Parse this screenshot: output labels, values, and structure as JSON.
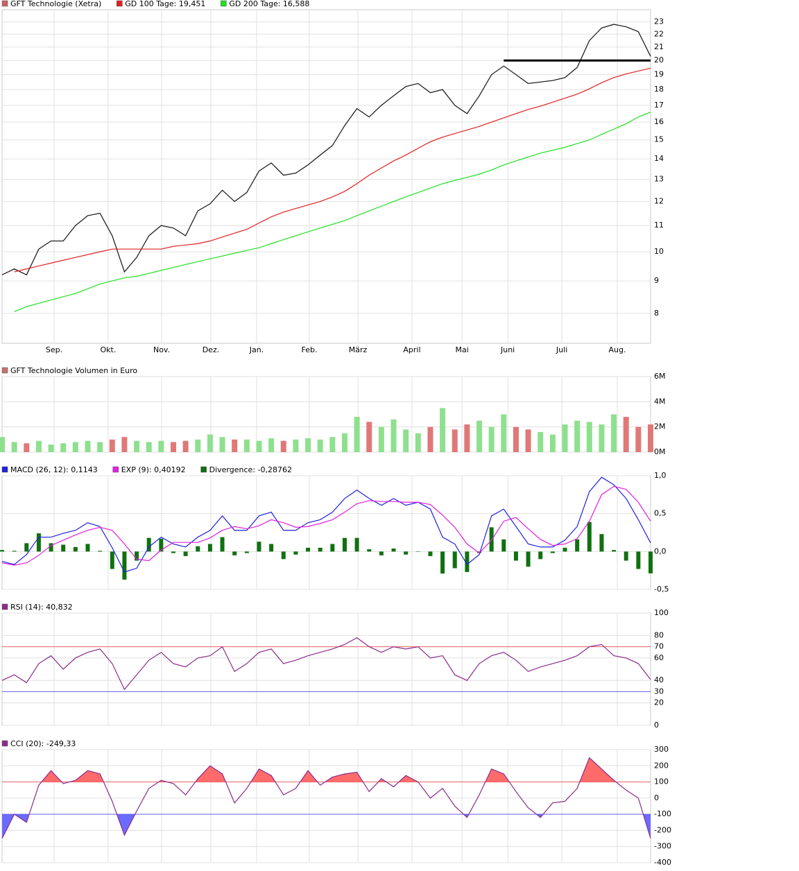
{
  "chart_data": [
    {
      "type": "line",
      "log_scale": true,
      "x": [
        0,
        1,
        2,
        3,
        4,
        5,
        6,
        7,
        8,
        9,
        10,
        11,
        12,
        13,
        14,
        15,
        16,
        17,
        18,
        19,
        20,
        21,
        22,
        23,
        24,
        25,
        26,
        27,
        28,
        29,
        30,
        31,
        32,
        33,
        34,
        35,
        36,
        37,
        38,
        39,
        40,
        41,
        42,
        43,
        44,
        45,
        46,
        47,
        48,
        49,
        50,
        51,
        52,
        53
      ],
      "xlim": [
        0,
        53
      ],
      "xticks": [
        {
          "value": 4.25,
          "label": "Sep."
        },
        {
          "value": 8.67,
          "label": "Okt."
        },
        {
          "value": 13.04,
          "label": "Nov."
        },
        {
          "value": 17.06,
          "label": "Dez."
        },
        {
          "value": 20.8,
          "label": "Jan."
        },
        {
          "value": 25.11,
          "label": "Feb."
        },
        {
          "value": 29.08,
          "label": "März"
        },
        {
          "value": 33.5,
          "label": "April"
        },
        {
          "value": 37.59,
          "label": "Mai"
        },
        {
          "value": 41.33,
          "label": "Juni"
        },
        {
          "value": 45.75,
          "label": "Juli"
        },
        {
          "value": 50.28,
          "label": "Aug."
        }
      ],
      "ylim": [
        7.18,
        24.04
      ],
      "yticks": [
        8,
        9,
        10,
        11,
        12,
        13,
        14,
        15,
        16,
        17,
        18,
        19,
        20,
        21,
        22,
        23
      ],
      "grid": true,
      "series": [
        {
          "name": "GFT Technologie (Xetra)",
          "color": "#222222",
          "legend_color": "#d06060",
          "values": [
            9.2,
            9.4,
            9.2,
            10.1,
            10.4,
            10.4,
            11.0,
            11.4,
            11.5,
            10.6,
            9.3,
            9.8,
            10.6,
            11.0,
            10.9,
            10.6,
            11.6,
            11.9,
            12.5,
            12.0,
            12.4,
            13.4,
            13.8,
            13.2,
            13.3,
            13.7,
            14.2,
            14.7,
            15.8,
            16.8,
            16.3,
            17.0,
            17.6,
            18.2,
            18.4,
            17.8,
            18.0,
            17.0,
            16.5,
            17.6,
            19.0,
            19.6,
            19.0,
            18.4,
            18.5,
            18.6,
            18.8,
            19.5,
            21.5,
            22.5,
            22.8,
            22.6,
            22.2,
            20.3
          ]
        },
        {
          "name": "GD 100 Tage: 19,451",
          "color": "#e02020",
          "values": [
            null,
            9.3,
            9.4,
            9.5,
            9.6,
            9.7,
            9.8,
            9.9,
            10.0,
            10.1,
            10.1,
            10.1,
            10.1,
            10.1,
            10.2,
            10.25,
            10.3,
            10.4,
            10.55,
            10.7,
            10.85,
            11.1,
            11.35,
            11.55,
            11.7,
            11.85,
            12.0,
            12.2,
            12.45,
            12.8,
            13.2,
            13.55,
            13.9,
            14.2,
            14.55,
            14.9,
            15.15,
            15.35,
            15.55,
            15.75,
            16.0,
            16.25,
            16.5,
            16.75,
            16.95,
            17.2,
            17.45,
            17.7,
            18.05,
            18.45,
            18.8,
            19.05,
            19.25,
            19.451
          ]
        },
        {
          "name": "GD 200 Tage: 16,588",
          "color": "#20e020",
          "values": [
            null,
            8.05,
            8.2,
            8.3,
            8.4,
            8.5,
            8.6,
            8.75,
            8.9,
            9.0,
            9.1,
            9.15,
            9.25,
            9.35,
            9.45,
            9.55,
            9.65,
            9.75,
            9.85,
            9.95,
            10.05,
            10.15,
            10.3,
            10.45,
            10.6,
            10.75,
            10.9,
            11.05,
            11.2,
            11.4,
            11.6,
            11.8,
            12.0,
            12.2,
            12.4,
            12.6,
            12.8,
            12.95,
            13.1,
            13.25,
            13.45,
            13.7,
            13.9,
            14.1,
            14.3,
            14.45,
            14.6,
            14.8,
            15.0,
            15.3,
            15.6,
            15.9,
            16.3,
            16.588
          ]
        }
      ],
      "level_line": {
        "y": 20,
        "x": [
          41,
          53
        ],
        "color": "#000000"
      }
    },
    {
      "type": "bar",
      "name": "GFT Technologie Volumen in Euro",
      "color": "#c87070",
      "up_color": "#8ee08e",
      "down_color": "#e07878",
      "ylim": [
        0,
        6000000
      ],
      "yticks": [
        {
          "value": 0,
          "label": "0M"
        },
        {
          "value": 2000000,
          "label": "2M"
        },
        {
          "value": 4000000,
          "label": "4M"
        },
        {
          "value": 6000000,
          "label": "6M"
        }
      ],
      "values": [
        1200000,
        800000,
        700000,
        900000,
        600000,
        700000,
        800000,
        900000,
        800000,
        1000000,
        1200000,
        900000,
        800000,
        900000,
        800000,
        900000,
        1000000,
        1400000,
        1200000,
        1000000,
        1000000,
        900000,
        1100000,
        900000,
        1000000,
        1100000,
        1000000,
        1200000,
        1500000,
        2800000,
        2400000,
        2000000,
        2600000,
        1800000,
        1500000,
        2000000,
        3500000,
        1800000,
        2200000,
        2500000,
        2000000,
        3000000,
        2000000,
        1800000,
        1600000,
        1400000,
        2200000,
        2500000,
        2400000,
        2200000,
        3000000,
        2800000,
        2000000,
        2200000
      ]
    },
    {
      "type": "macd",
      "ylim": [
        -0.5,
        1.0
      ],
      "yticks": [
        {
          "value": -0.5,
          "label": "-0,5"
        },
        {
          "value": 0,
          "label": "0,0"
        },
        {
          "value": 0.5,
          "label": "0,5"
        },
        {
          "value": 1.0,
          "label": "1,0"
        }
      ],
      "series": [
        {
          "name": "MACD (26, 12): 0,1143",
          "color": "#2020e0",
          "style": "line",
          "values": [
            -0.13,
            -0.17,
            -0.04,
            0.19,
            0.19,
            0.24,
            0.28,
            0.38,
            0.33,
            0.05,
            -0.27,
            -0.22,
            0.06,
            0.19,
            0.1,
            0.06,
            0.19,
            0.28,
            0.47,
            0.28,
            0.28,
            0.47,
            0.52,
            0.28,
            0.28,
            0.38,
            0.42,
            0.52,
            0.7,
            0.81,
            0.7,
            0.61,
            0.7,
            0.61,
            0.65,
            0.56,
            0.19,
            0.1,
            -0.17,
            -0.04,
            0.47,
            0.56,
            0.33,
            0.1,
            0.06,
            0.06,
            0.15,
            0.33,
            0.79,
            0.98,
            0.88,
            0.7,
            0.42,
            0.1143
          ]
        },
        {
          "name": "EXP (9): 0,40192",
          "color": "#e020e0",
          "style": "line",
          "values": [
            -0.15,
            -0.18,
            -0.15,
            -0.05,
            0.08,
            0.15,
            0.22,
            0.28,
            0.32,
            0.28,
            0.1,
            -0.1,
            -0.12,
            0.02,
            0.12,
            0.12,
            0.12,
            0.18,
            0.28,
            0.33,
            0.3,
            0.34,
            0.42,
            0.38,
            0.32,
            0.33,
            0.37,
            0.42,
            0.52,
            0.63,
            0.67,
            0.66,
            0.66,
            0.65,
            0.65,
            0.62,
            0.48,
            0.32,
            0.1,
            -0.02,
            0.15,
            0.4,
            0.45,
            0.3,
            0.16,
            0.08,
            0.1,
            0.17,
            0.4,
            0.75,
            0.86,
            0.82,
            0.65,
            0.40192
          ]
        },
        {
          "name": "Divergence: -0,28762",
          "color": "#107010",
          "style": "bar",
          "values": [
            0.02,
            0.01,
            0.11,
            0.24,
            0.11,
            0.09,
            0.06,
            0.1,
            0.01,
            -0.23,
            -0.37,
            -0.12,
            0.18,
            0.17,
            -0.02,
            -0.06,
            0.07,
            0.1,
            0.19,
            -0.05,
            -0.02,
            0.13,
            0.1,
            -0.1,
            -0.04,
            0.05,
            0.05,
            0.1,
            0.18,
            0.18,
            0.03,
            -0.05,
            0.04,
            -0.04,
            0.0,
            -0.06,
            -0.29,
            -0.22,
            -0.27,
            -0.02,
            0.32,
            0.16,
            -0.12,
            -0.2,
            -0.1,
            -0.02,
            0.05,
            0.16,
            0.39,
            0.23,
            0.02,
            -0.12,
            -0.23,
            -0.28762
          ]
        }
      ]
    },
    {
      "type": "line",
      "ylim": [
        0,
        100
      ],
      "yticks": [
        0,
        20,
        40,
        60,
        80,
        100
      ],
      "reference_lines": [
        {
          "value": 70,
          "color": "#e06060"
        },
        {
          "value": 30,
          "color": "#6060e0"
        }
      ],
      "series": [
        {
          "name": "RSI (14): 40,832",
          "color": "#8b2b8b",
          "values": [
            40,
            45,
            38,
            55,
            62,
            50,
            60,
            65,
            68,
            55,
            32,
            45,
            58,
            65,
            55,
            52,
            60,
            62,
            70,
            48,
            55,
            65,
            68,
            55,
            58,
            62,
            65,
            68,
            72,
            78,
            70,
            65,
            70,
            68,
            70,
            60,
            62,
            45,
            40,
            55,
            62,
            65,
            58,
            48,
            52,
            55,
            58,
            62,
            70,
            72,
            62,
            60,
            55,
            40.832
          ]
        }
      ]
    },
    {
      "type": "line",
      "ylim": [
        -400,
        300
      ],
      "yticks": [
        -400,
        -300,
        -200,
        0,
        200,
        300
      ],
      "reference_lines": [
        {
          "value": 100,
          "color": "#e06060",
          "fill": "above",
          "fill_color": "#ff6b6b"
        },
        {
          "value": -100,
          "color": "#6060e0",
          "fill": "below",
          "fill_color": "#6b6bff"
        }
      ],
      "series": [
        {
          "name": "CCI (20): -249,33",
          "color": "#8b2b8b",
          "values": [
            -250,
            -100,
            -150,
            80,
            170,
            90,
            110,
            170,
            150,
            -20,
            -230,
            -80,
            60,
            110,
            90,
            20,
            120,
            200,
            150,
            -30,
            60,
            180,
            140,
            20,
            60,
            170,
            80,
            130,
            150,
            160,
            40,
            120,
            70,
            140,
            100,
            0,
            60,
            -50,
            -120,
            20,
            180,
            150,
            40,
            -60,
            -120,
            -30,
            -20,
            60,
            250,
            180,
            110,
            50,
            0,
            -249.33
          ]
        }
      ]
    }
  ]
}
